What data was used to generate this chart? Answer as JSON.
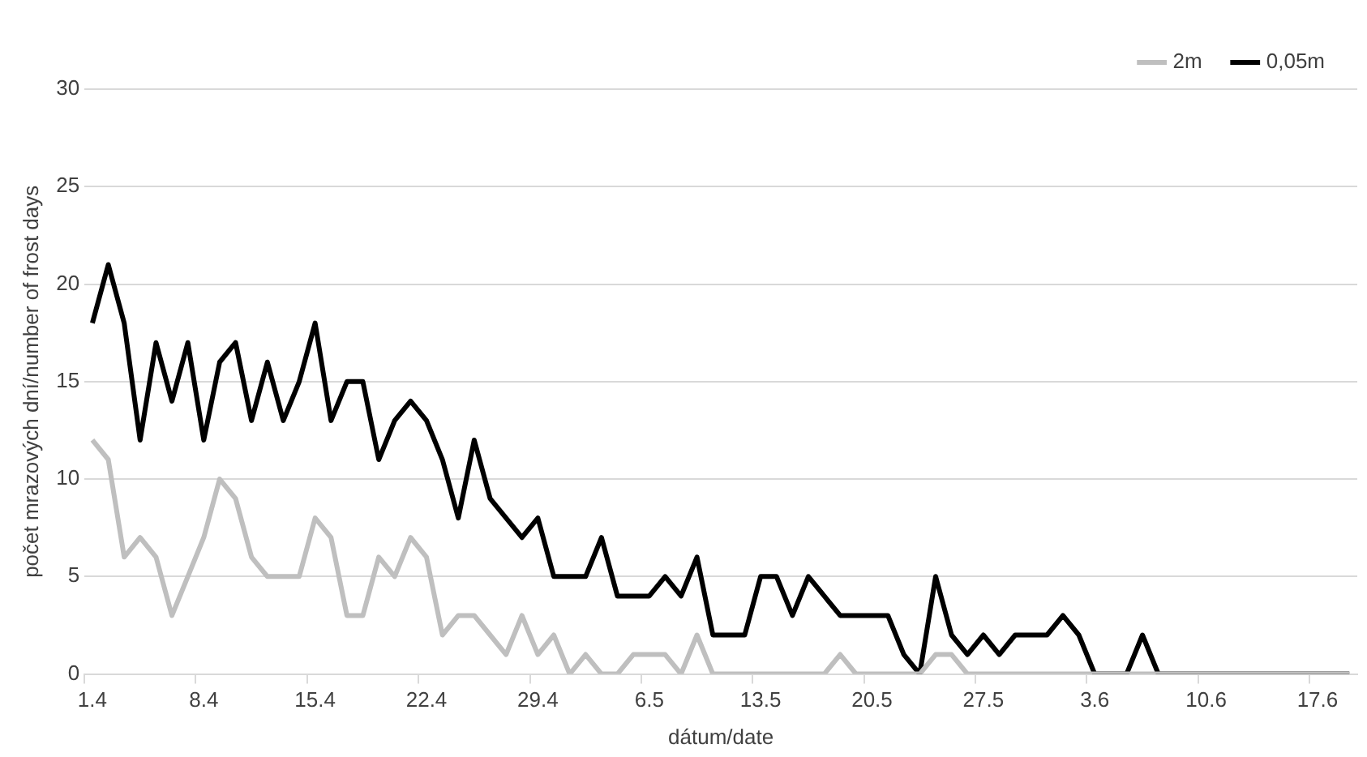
{
  "chart_data": {
    "type": "line",
    "xlabel": "dátum/date",
    "ylabel": "počet mrazových dní/number of frost days",
    "categories": [
      "1.4",
      null,
      null,
      null,
      null,
      null,
      null,
      "8.4",
      null,
      null,
      null,
      null,
      null,
      null,
      "15.4",
      null,
      null,
      null,
      null,
      null,
      null,
      "22.4",
      null,
      null,
      null,
      null,
      null,
      null,
      "29.4",
      null,
      null,
      null,
      null,
      null,
      null,
      "6.5",
      null,
      null,
      null,
      null,
      null,
      null,
      "13.5",
      null,
      null,
      null,
      null,
      null,
      null,
      "20.5",
      null,
      null,
      null,
      null,
      null,
      null,
      "27.5",
      null,
      null,
      null,
      null,
      null,
      null,
      "3.6",
      null,
      null,
      null,
      null,
      null,
      null,
      "10.6",
      null,
      null,
      null,
      null,
      null,
      null,
      "17.6",
      null,
      null
    ],
    "series": [
      {
        "name": "2m",
        "color": "#bfbfbf",
        "values": [
          12,
          11,
          6,
          7,
          6,
          3,
          5,
          7,
          10,
          9,
          6,
          5,
          5,
          5,
          8,
          7,
          3,
          3,
          6,
          5,
          7,
          6,
          2,
          3,
          3,
          2,
          1,
          3,
          1,
          2,
          0,
          1,
          0,
          0,
          1,
          1,
          1,
          0,
          2,
          0,
          0,
          0,
          0,
          0,
          0,
          0,
          0,
          1,
          0,
          0,
          0,
          0,
          0,
          1,
          1,
          0,
          0,
          0,
          0,
          0,
          0,
          0,
          0,
          0,
          0,
          0,
          0,
          0,
          0,
          0,
          0,
          0,
          0,
          0,
          0,
          0,
          0,
          0,
          0,
          0
        ]
      },
      {
        "name": "0,05m",
        "color": "#000000",
        "values": [
          18,
          21,
          18,
          12,
          17,
          14,
          17,
          12,
          16,
          17,
          13,
          16,
          13,
          15,
          18,
          13,
          15,
          15,
          11,
          13,
          14,
          13,
          11,
          8,
          12,
          9,
          8,
          7,
          8,
          5,
          5,
          5,
          7,
          4,
          4,
          4,
          5,
          4,
          6,
          2,
          2,
          2,
          5,
          5,
          3,
          5,
          4,
          3,
          3,
          3,
          3,
          1,
          0,
          5,
          2,
          1,
          2,
          1,
          2,
          2,
          2,
          3,
          2,
          0,
          0,
          0,
          2,
          0,
          0,
          0,
          0,
          0,
          0,
          0,
          0,
          0,
          0,
          0,
          0,
          0
        ]
      }
    ],
    "ylim": [
      0,
      30
    ],
    "yticks": [
      0,
      5,
      10,
      15,
      20,
      25,
      30
    ],
    "grid": "y",
    "legend": "top right",
    "marker": "none",
    "line_style": "solid"
  }
}
